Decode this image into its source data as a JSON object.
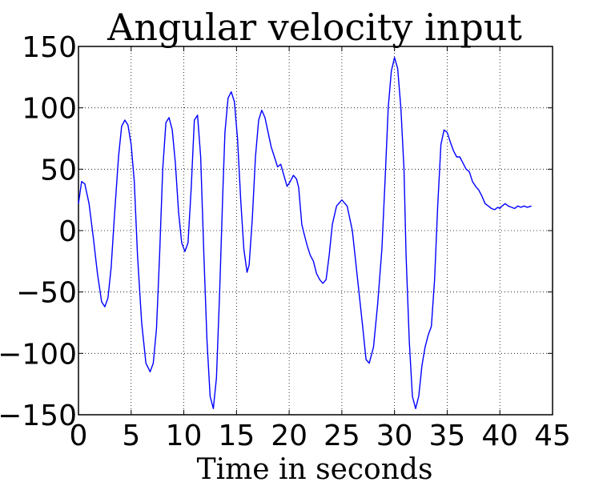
{
  "chart_data": {
    "type": "line",
    "title": "Angular velocity input",
    "xlabel": "Time in seconds",
    "ylabel": "",
    "xlim": [
      0,
      45
    ],
    "ylim": [
      -150,
      150
    ],
    "xticks": [
      "0",
      "5",
      "10",
      "15",
      "20",
      "25",
      "30",
      "35",
      "40",
      "45"
    ],
    "yticks": [
      "150",
      "100",
      "50",
      "0",
      "−50",
      "−100",
      "−150"
    ],
    "grid": true,
    "line_color": "#0000ff",
    "series": [
      {
        "x": [
          0,
          0.3,
          0.6,
          1.0,
          1.4,
          1.8,
          2.2,
          2.5,
          2.8,
          3.1,
          3.4,
          3.8,
          4.1,
          4.4,
          4.7,
          5.0,
          5.3,
          5.6,
          6.0,
          6.4,
          6.8,
          7.1,
          7.4,
          7.7,
          8.0,
          8.3,
          8.6,
          8.9,
          9.2,
          9.5,
          9.8,
          10.1,
          10.4,
          10.7,
          11.0,
          11.3,
          11.6,
          11.9,
          12.2,
          12.5,
          12.8,
          13.1,
          13.4,
          13.7,
          13.9,
          14.2,
          14.5,
          14.8,
          15.1,
          15.4,
          15.7,
          16.0,
          16.2,
          16.5,
          16.8,
          17.1,
          17.4,
          17.7,
          18.0,
          18.3,
          18.6,
          18.9,
          19.2,
          19.5,
          19.8,
          20.1,
          20.4,
          20.7,
          20.9,
          21.0,
          21.1,
          21.2,
          21.4,
          21.7,
          22.0,
          22.3,
          22.6,
          22.9,
          23.2,
          23.5,
          23.8,
          24.1,
          24.5,
          25.0,
          25.5,
          26.0,
          26.5,
          27.0,
          27.3,
          27.6,
          28.0,
          28.4,
          28.8,
          29.1,
          29.4,
          29.7,
          30.0,
          30.3,
          30.6,
          30.9,
          31.1,
          31.4,
          31.7,
          32.0,
          32.3,
          32.6,
          32.9,
          33.2,
          33.5,
          33.8,
          34.1,
          34.4,
          34.7,
          35.0,
          35.3,
          35.6,
          35.9,
          36.2,
          36.5,
          36.8,
          37.1,
          37.4,
          37.7,
          38.0,
          38.3,
          38.6,
          38.9,
          39.2,
          39.5,
          39.8,
          40.0,
          40.2,
          40.5,
          40.8,
          41.1,
          41.4,
          41.7,
          42.0,
          42.3,
          42.6,
          43.0
        ],
        "y": [
          22,
          40,
          38,
          22,
          -5,
          -35,
          -58,
          -62,
          -55,
          -30,
          10,
          60,
          85,
          90,
          86,
          70,
          40,
          -20,
          -75,
          -108,
          -115,
          -108,
          -80,
          -20,
          50,
          88,
          92,
          82,
          55,
          15,
          -10,
          -17,
          -10,
          35,
          90,
          94,
          60,
          -20,
          -90,
          -135,
          -145,
          -120,
          -50,
          30,
          80,
          108,
          113,
          105,
          75,
          25,
          -15,
          -34,
          -28,
          10,
          60,
          90,
          98,
          92,
          80,
          68,
          60,
          52,
          54,
          45,
          36,
          40,
          45,
          42,
          35,
          25,
          15,
          5,
          -2,
          -12,
          -20,
          -25,
          -35,
          -40,
          -43,
          -40,
          -20,
          5,
          20,
          25,
          20,
          0,
          -40,
          -80,
          -105,
          -108,
          -95,
          -60,
          -15,
          40,
          100,
          130,
          141,
          132,
          100,
          50,
          -20,
          -90,
          -135,
          -145,
          -135,
          -110,
          -95,
          -85,
          -78,
          -40,
          20,
          70,
          82,
          80,
          72,
          65,
          60,
          60,
          55,
          50,
          48,
          40,
          36,
          33,
          28,
          22,
          20,
          18,
          17,
          19,
          18,
          20,
          22,
          20,
          19,
          18,
          20,
          19,
          20,
          19,
          20
        ]
      }
    ]
  }
}
